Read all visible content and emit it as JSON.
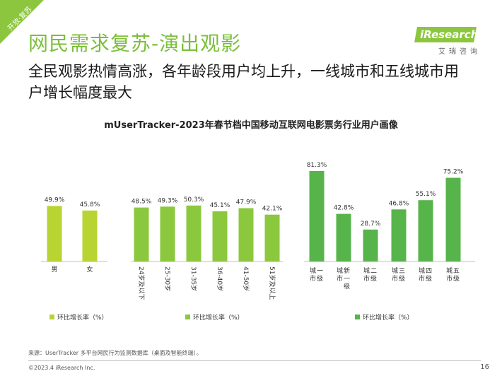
{
  "corner_tag": "开放·复苏",
  "title": "网民需求复苏-演出观影",
  "subtitle": "全民观影热情高涨，各年龄段用户均上升，一线城市和五线城市用户增长幅度最大",
  "logo": {
    "brand": "iResearch",
    "sub": "艾瑞咨询"
  },
  "accent_color": "#8cc63f",
  "chart_data": {
    "title": "mUserTracker-2023年春节档中国移动互联网电影票务行业用户画像",
    "charts": [
      {
        "type": "bar",
        "group": "gender",
        "categories": [
          "男",
          "女"
        ],
        "values": [
          49.9,
          45.8
        ],
        "labels": [
          "49.9%",
          "45.8%"
        ],
        "color": "#b7d432",
        "legend": "环比增长率（%）"
      },
      {
        "type": "bar",
        "group": "age",
        "categories": [
          "24岁及以下",
          "25-30岁",
          "31-35岁",
          "36-40岁",
          "41-50岁",
          "51岁及以上"
        ],
        "values": [
          48.5,
          49.3,
          50.3,
          45.1,
          47.9,
          42.1
        ],
        "labels": [
          "48.5%",
          "49.3%",
          "50.3%",
          "45.1%",
          "47.9%",
          "42.1%"
        ],
        "color": "#8bc83e",
        "legend": "环比增长率（%）"
      },
      {
        "type": "bar",
        "group": "city",
        "categories": [
          "一级城市",
          "新一级城市",
          "二级城市",
          "三级城市",
          "四级城市",
          "五级城市"
        ],
        "values": [
          81.3,
          42.8,
          28.7,
          46.8,
          55.1,
          75.2
        ],
        "labels": [
          "81.3%",
          "42.8%",
          "28.7%",
          "46.8%",
          "55.1%",
          "75.2%"
        ],
        "color": "#57b44a",
        "legend": "环比增长率（%）"
      }
    ]
  },
  "footnote": "来源：UserTracker 多平台网民行为监测数据库（桌面及智能终端）。",
  "copyright": "©2023.4 iResearch Inc.",
  "page_number": "16"
}
